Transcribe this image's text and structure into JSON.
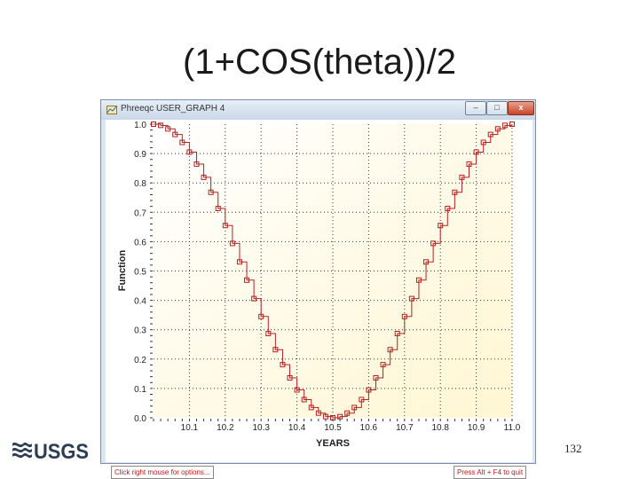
{
  "slide": {
    "title": "(1+COS(theta))/2",
    "page_number": "132",
    "logo_text": "USGS"
  },
  "window": {
    "title": "Phreeqc USER_GRAPH 4",
    "buttons": {
      "minimize": "–",
      "maximize": "□",
      "close": "x"
    },
    "status_left": "Click right mouse for options...",
    "status_right": "Press Alt + F4 to quit"
  },
  "colors": {
    "series": "#b22222",
    "plot_bg": "#fffbe6",
    "close_button": "#c8442c"
  },
  "chart_data": {
    "type": "line",
    "xlabel": "YEARS",
    "ylabel": "Function",
    "xlim": [
      10.0,
      11.0
    ],
    "ylim": [
      0.0,
      1.0
    ],
    "x_ticks": [
      "10.1",
      "10.2",
      "10.3",
      "10.4",
      "10.5",
      "10.6",
      "10.7",
      "10.8",
      "10.9",
      "11.0"
    ],
    "x_tick_values": [
      10.1,
      10.2,
      10.3,
      10.4,
      10.5,
      10.6,
      10.7,
      10.8,
      10.9,
      11.0
    ],
    "y_ticks": [
      "0.0",
      "0.1",
      "0.2",
      "0.3",
      "0.4",
      "0.5",
      "0.6",
      "0.7",
      "0.8",
      "0.9",
      "1.0"
    ],
    "y_tick_values": [
      0.0,
      0.1,
      0.2,
      0.3,
      0.4,
      0.5,
      0.6,
      0.7,
      0.8,
      0.9,
      1.0
    ],
    "grid": true,
    "marker": "square",
    "step": true,
    "series": [
      {
        "x": [
          10.0,
          10.02,
          10.04,
          10.06,
          10.08,
          10.1,
          10.12,
          10.14,
          10.16,
          10.18,
          10.2,
          10.22,
          10.24,
          10.26,
          10.28,
          10.3,
          10.32,
          10.34,
          10.36,
          10.38,
          10.4,
          10.42,
          10.44,
          10.46,
          10.48,
          10.5,
          10.52,
          10.54,
          10.56,
          10.58,
          10.6,
          10.62,
          10.64,
          10.66,
          10.68,
          10.7,
          10.72,
          10.74,
          10.76,
          10.78,
          10.8,
          10.82,
          10.84,
          10.86,
          10.88,
          10.9,
          10.92,
          10.94,
          10.96,
          10.98,
          11.0
        ],
        "y": [
          1.0,
          0.996,
          0.984,
          0.965,
          0.938,
          0.905,
          0.864,
          0.819,
          0.768,
          0.713,
          0.655,
          0.594,
          0.531,
          0.469,
          0.406,
          0.345,
          0.287,
          0.232,
          0.181,
          0.136,
          0.095,
          0.062,
          0.035,
          0.016,
          0.004,
          0.0,
          0.004,
          0.016,
          0.035,
          0.062,
          0.095,
          0.136,
          0.181,
          0.232,
          0.287,
          0.345,
          0.406,
          0.469,
          0.531,
          0.594,
          0.655,
          0.713,
          0.768,
          0.819,
          0.864,
          0.905,
          0.938,
          0.965,
          0.984,
          0.996,
          1.0
        ]
      }
    ]
  }
}
